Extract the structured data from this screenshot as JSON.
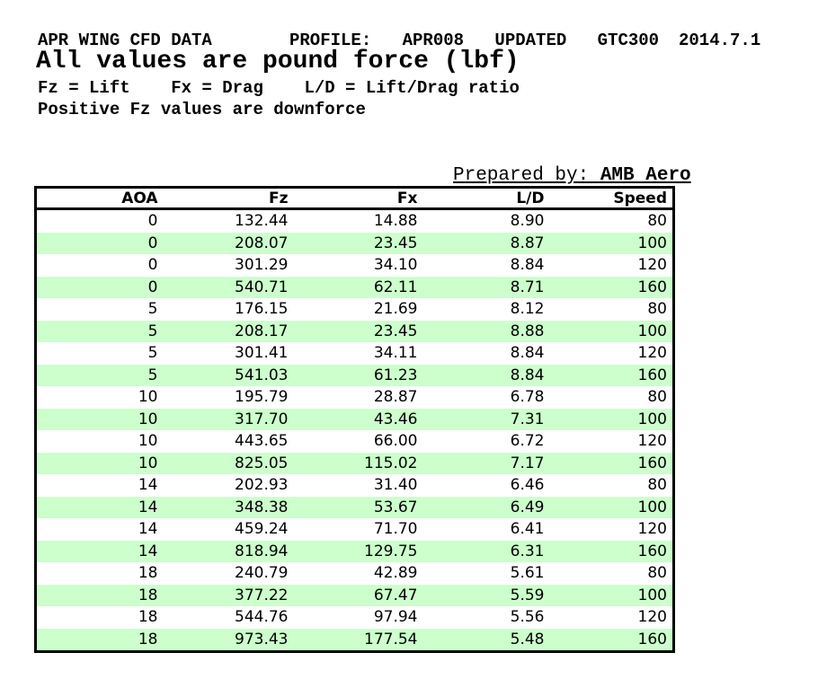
{
  "header": {
    "title": "APR WING CFD DATA",
    "profile": "PROFILE: APR008 UPDATED GTC300",
    "date": "2014.7.1",
    "subtitle": "All values are pound force (lbf)",
    "legend": "Fz = Lift    Fx = Drag    L/D = Lift/Drag ratio",
    "note": "Positive Fz values are downforce"
  },
  "prepared_by": {
    "label": "Prepared by: ",
    "value": "AMB Aero"
  },
  "table": {
    "columns": [
      "AOA",
      "Fz",
      "Fx",
      "L/D",
      "Speed"
    ],
    "rows": [
      [
        "0",
        "132.44",
        "14.88",
        "8.90",
        "80"
      ],
      [
        "0",
        "208.07",
        "23.45",
        "8.87",
        "100"
      ],
      [
        "0",
        "301.29",
        "34.10",
        "8.84",
        "120"
      ],
      [
        "0",
        "540.71",
        "62.11",
        "8.71",
        "160"
      ],
      [
        "5",
        "176.15",
        "21.69",
        "8.12",
        "80"
      ],
      [
        "5",
        "208.17",
        "23.45",
        "8.88",
        "100"
      ],
      [
        "5",
        "301.41",
        "34.11",
        "8.84",
        "120"
      ],
      [
        "5",
        "541.03",
        "61.23",
        "8.84",
        "160"
      ],
      [
        "10",
        "195.79",
        "28.87",
        "6.78",
        "80"
      ],
      [
        "10",
        "317.70",
        "43.46",
        "7.31",
        "100"
      ],
      [
        "10",
        "443.65",
        "66.00",
        "6.72",
        "120"
      ],
      [
        "10",
        "825.05",
        "115.02",
        "7.17",
        "160"
      ],
      [
        "14",
        "202.93",
        "31.40",
        "6.46",
        "80"
      ],
      [
        "14",
        "348.38",
        "53.67",
        "6.49",
        "100"
      ],
      [
        "14",
        "459.24",
        "71.70",
        "6.41",
        "120"
      ],
      [
        "14",
        "818.94",
        "129.75",
        "6.31",
        "160"
      ],
      [
        "18",
        "240.79",
        "42.89",
        "5.61",
        "80"
      ],
      [
        "18",
        "377.22",
        "67.47",
        "5.59",
        "100"
      ],
      [
        "18",
        "544.76",
        "97.94",
        "5.56",
        "120"
      ],
      [
        "18",
        "973.43",
        "177.54",
        "5.48",
        "160"
      ]
    ],
    "stripe_color": "#ccffcc",
    "border_color": "#000000",
    "text_color": "#000000"
  }
}
